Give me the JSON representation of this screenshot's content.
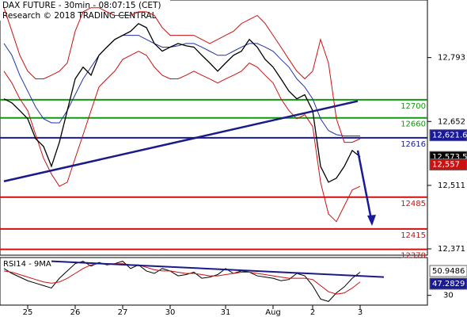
{
  "chart_data": {
    "type": "line",
    "title": "DAX FUTURE - 30min - 08:07:15 (CET)",
    "subtitle": "Research © 2018 TRADING CENTRAL",
    "x": [
      0,
      1,
      2,
      3,
      4,
      5,
      6,
      7,
      8,
      9,
      10,
      11,
      12,
      13,
      14,
      15,
      16,
      17,
      18,
      19,
      20,
      21,
      22,
      23,
      24,
      25,
      26,
      27,
      28,
      29,
      30,
      31,
      32,
      33,
      34,
      35,
      36,
      37,
      38,
      39,
      40,
      41,
      42,
      43,
      44,
      45
    ],
    "xlim": [
      -0.5,
      53.5
    ],
    "xticks": [
      {
        "value": 3,
        "label": "25"
      },
      {
        "value": 9,
        "label": "26"
      },
      {
        "value": 15,
        "label": "27"
      },
      {
        "value": 21,
        "label": "30"
      },
      {
        "value": 28,
        "label": "31"
      },
      {
        "value": 34,
        "label": "Aug"
      },
      {
        "value": 39,
        "label": "2"
      },
      {
        "value": 45,
        "label": "3"
      }
    ],
    "ylim": [
      12357,
      12920
    ],
    "yticks": [
      {
        "value": 12793,
        "label": "12,793"
      },
      {
        "value": 12652,
        "label": "12,652"
      },
      {
        "value": 12511,
        "label": "12,511"
      },
      {
        "value": 12371,
        "label": "12,371"
      }
    ],
    "series": [
      {
        "color": "#cc1111",
        "values": [
          12903,
          12851,
          12798,
          12763,
          12746,
          12746,
          12754,
          12763,
          12781,
          12851,
          12894,
          12903,
          12903,
          12894,
          12886,
          12886,
          12886,
          12894,
          12894,
          12886,
          12859,
          12842,
          12842,
          12842,
          12842,
          12833,
          12824,
          12833,
          12842,
          12851,
          12868,
          12877,
          12886,
          12868,
          12842,
          12816,
          12789,
          12763,
          12746,
          12763,
          12833,
          12781,
          12658,
          12606,
          12606,
          12614
        ]
      },
      {
        "color": "#cc1111",
        "values": [
          12763,
          12737,
          12702,
          12676,
          12623,
          12571,
          12536,
          12509,
          12518,
          12571,
          12623,
          12676,
          12728,
          12746,
          12763,
          12789,
          12798,
          12807,
          12798,
          12772,
          12754,
          12746,
          12746,
          12754,
          12763,
          12754,
          12746,
          12737,
          12746,
          12754,
          12763,
          12781,
          12772,
          12754,
          12737,
          12702,
          12676,
          12658,
          12667,
          12641,
          12518,
          12448,
          12431,
          12466,
          12501,
          12509
        ]
      },
      {
        "color": "#2233aa",
        "values": [
          12824,
          12798,
          12754,
          12719,
          12684,
          12658,
          12649,
          12649,
          12676,
          12711,
          12746,
          12772,
          12798,
          12816,
          12833,
          12842,
          12842,
          12842,
          12833,
          12824,
          12816,
          12816,
          12819,
          12824,
          12824,
          12816,
          12807,
          12798,
          12798,
          12807,
          12816,
          12824,
          12824,
          12816,
          12807,
          12789,
          12772,
          12746,
          12728,
          12702,
          12658,
          12632,
          12623,
          12620,
          12620,
          12620
        ]
      },
      {
        "color": "#000000",
        "values": [
          12702,
          12693,
          12676,
          12658,
          12614,
          12597,
          12553,
          12606,
          12676,
          12746,
          12772,
          12754,
          12798,
          12816,
          12833,
          12842,
          12851,
          12868,
          12859,
          12824,
          12807,
          12816,
          12824,
          12819,
          12816,
          12798,
          12781,
          12763,
          12781,
          12798,
          12807,
          12833,
          12816,
          12789,
          12772,
          12746,
          12719,
          12702,
          12711,
          12676,
          12553,
          12518,
          12527,
          12553,
          12588,
          12574
        ]
      }
    ],
    "levels": [
      {
        "value": 12700,
        "color": "#119911"
      },
      {
        "value": 12660,
        "color": "#119911"
      },
      {
        "value": 12616,
        "color": "#1a1a99"
      },
      {
        "value": 12485,
        "color": "#cc1111"
      },
      {
        "value": 12415,
        "color": "#cc1111"
      },
      {
        "value": 12370,
        "color": "#cc1111"
      }
    ],
    "trendline": {
      "color": "#1a1a88",
      "x": [
        0,
        44.7
      ],
      "values": [
        12520,
        12697
      ]
    },
    "arrow": {
      "color": "#1a1a99",
      "x": [
        44.7,
        46.5
      ],
      "values": [
        12588,
        12427
      ]
    },
    "last_labels": [
      {
        "value": 12621.6,
        "label": "12,621.6",
        "color": "#1a1a99"
      },
      {
        "value": 12573.5,
        "label": "12,573.5",
        "color": "#000000"
      },
      {
        "value": 12557,
        "label": "12,557",
        "color": "#cc1111"
      }
    ],
    "rsi": {
      "label": "RSI14 - 9MA",
      "ylim": [
        22,
        61
      ],
      "yticks": [
        30
      ],
      "series": [
        {
          "color": "#000000",
          "values": [
            52,
            48,
            45,
            42,
            40,
            38,
            36,
            44,
            50,
            56,
            58,
            54,
            57,
            55,
            56,
            58,
            52,
            55,
            50,
            48,
            52,
            50,
            46,
            47,
            49,
            44,
            45,
            47,
            52,
            48,
            50,
            49,
            46,
            45,
            44,
            42,
            43,
            48,
            46,
            38,
            27,
            25,
            32,
            37,
            44,
            49
          ]
        },
        {
          "color": "#cc1111",
          "values": [
            50,
            49,
            47,
            45,
            43,
            41,
            40,
            41,
            44,
            48,
            52,
            55,
            56,
            56,
            56,
            56,
            55,
            55,
            53,
            51,
            50,
            50,
            49,
            48,
            48,
            47,
            46,
            46,
            47,
            48,
            49,
            49,
            48,
            47,
            46,
            45,
            44,
            44,
            44,
            43,
            38,
            33,
            31,
            32,
            36,
            41
          ]
        }
      ],
      "trendline": {
        "color": "#1a1a88",
        "x": [
          6,
          48
        ],
        "values": [
          58,
          45
        ]
      },
      "last_labels": [
        {
          "value": 50.9486,
          "label": "50.9486",
          "color": "#ffffff"
        },
        {
          "value": 47.2829,
          "label": "47.2829",
          "color": "#1a1a99"
        }
      ]
    }
  }
}
